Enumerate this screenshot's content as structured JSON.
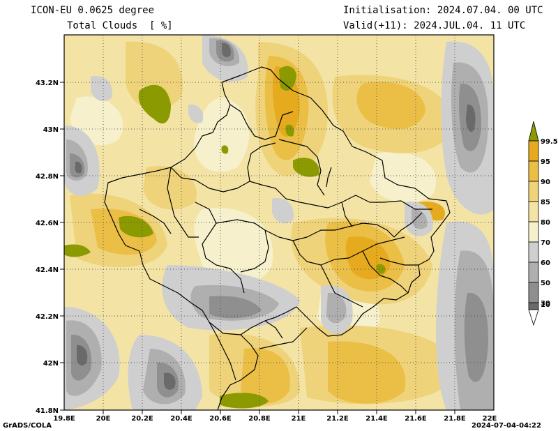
{
  "header": {
    "model_title": "ICON-EU 0.0625 degree",
    "variable_title": "Total Clouds  [ %]",
    "init_label": "Initialisation: 2024.07.04. 00 UTC",
    "valid_label": "Valid(+11): 2024.JUL.04. 11 UTC"
  },
  "map": {
    "lat_ticks": [
      "43.2N",
      "43N",
      "42.8N",
      "42.6N",
      "42.4N",
      "42.2N",
      "42N",
      "41.8N"
    ],
    "lon_ticks": [
      "19.8E",
      "20E",
      "20.2E",
      "20.4E",
      "20.6E",
      "20.8E",
      "21E",
      "21.2E",
      "21.4E",
      "21.6E",
      "21.8E",
      "22E"
    ],
    "gridlines": "dotted"
  },
  "colorbar": {
    "levels": [
      "99.5",
      "95",
      "90",
      "85",
      "80",
      "70",
      "60",
      "50",
      "30",
      "10"
    ],
    "colors": {
      "above_99_5": "#8a9a00",
      "95_99_5": "#e6aa1e",
      "90_95": "#ebbf45",
      "85_90": "#efd37a",
      "80_85": "#f3e4a6",
      "70_80": "#f6f1cc",
      "60_70": "#cfcfcf",
      "50_60": "#afafaf",
      "30_50": "#8f8f8f",
      "10_30": "#6a6a6a",
      "below_10": "#ffffff"
    }
  },
  "footer": {
    "left": "GrADS/COLA",
    "right": "2024-07-04-04:22"
  }
}
